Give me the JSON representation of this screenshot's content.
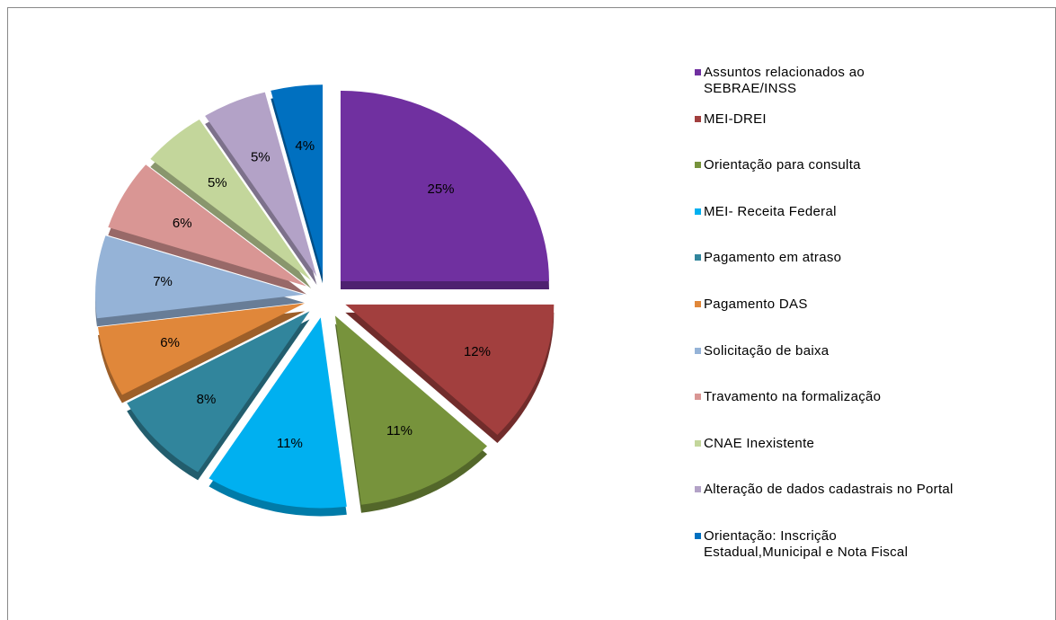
{
  "chart_data": {
    "type": "pie",
    "categories": [
      "Assuntos relacionados ao\nSEBRAE/INSS",
      "MEI-DREI",
      "Orientação para consulta",
      "MEI- Receita Federal",
      "Pagamento em atraso",
      "Pagamento DAS",
      "Solicitação de baixa",
      "Travamento na formalização",
      "CNAE Inexistente",
      "Alteração de dados cadastrais no Portal",
      "Orientação: Inscrição\nEstadual,Municipal e Nota Fiscal"
    ],
    "values": [
      25,
      12,
      11,
      11,
      8,
      6,
      7,
      6,
      5,
      5,
      4
    ],
    "value_labels": [
      "25%",
      "12%",
      "11%",
      "11%",
      "8%",
      "6%",
      "7%",
      "6%",
      "5%",
      "5%",
      "4%"
    ],
    "colors": [
      "#7030a0",
      "#a23f3e",
      "#77933c",
      "#00b0f0",
      "#31859c",
      "#e0873a",
      "#95b3d7",
      "#d99694",
      "#c3d69b",
      "#b3a2c7",
      "#0070c0"
    ],
    "legend": "right"
  }
}
